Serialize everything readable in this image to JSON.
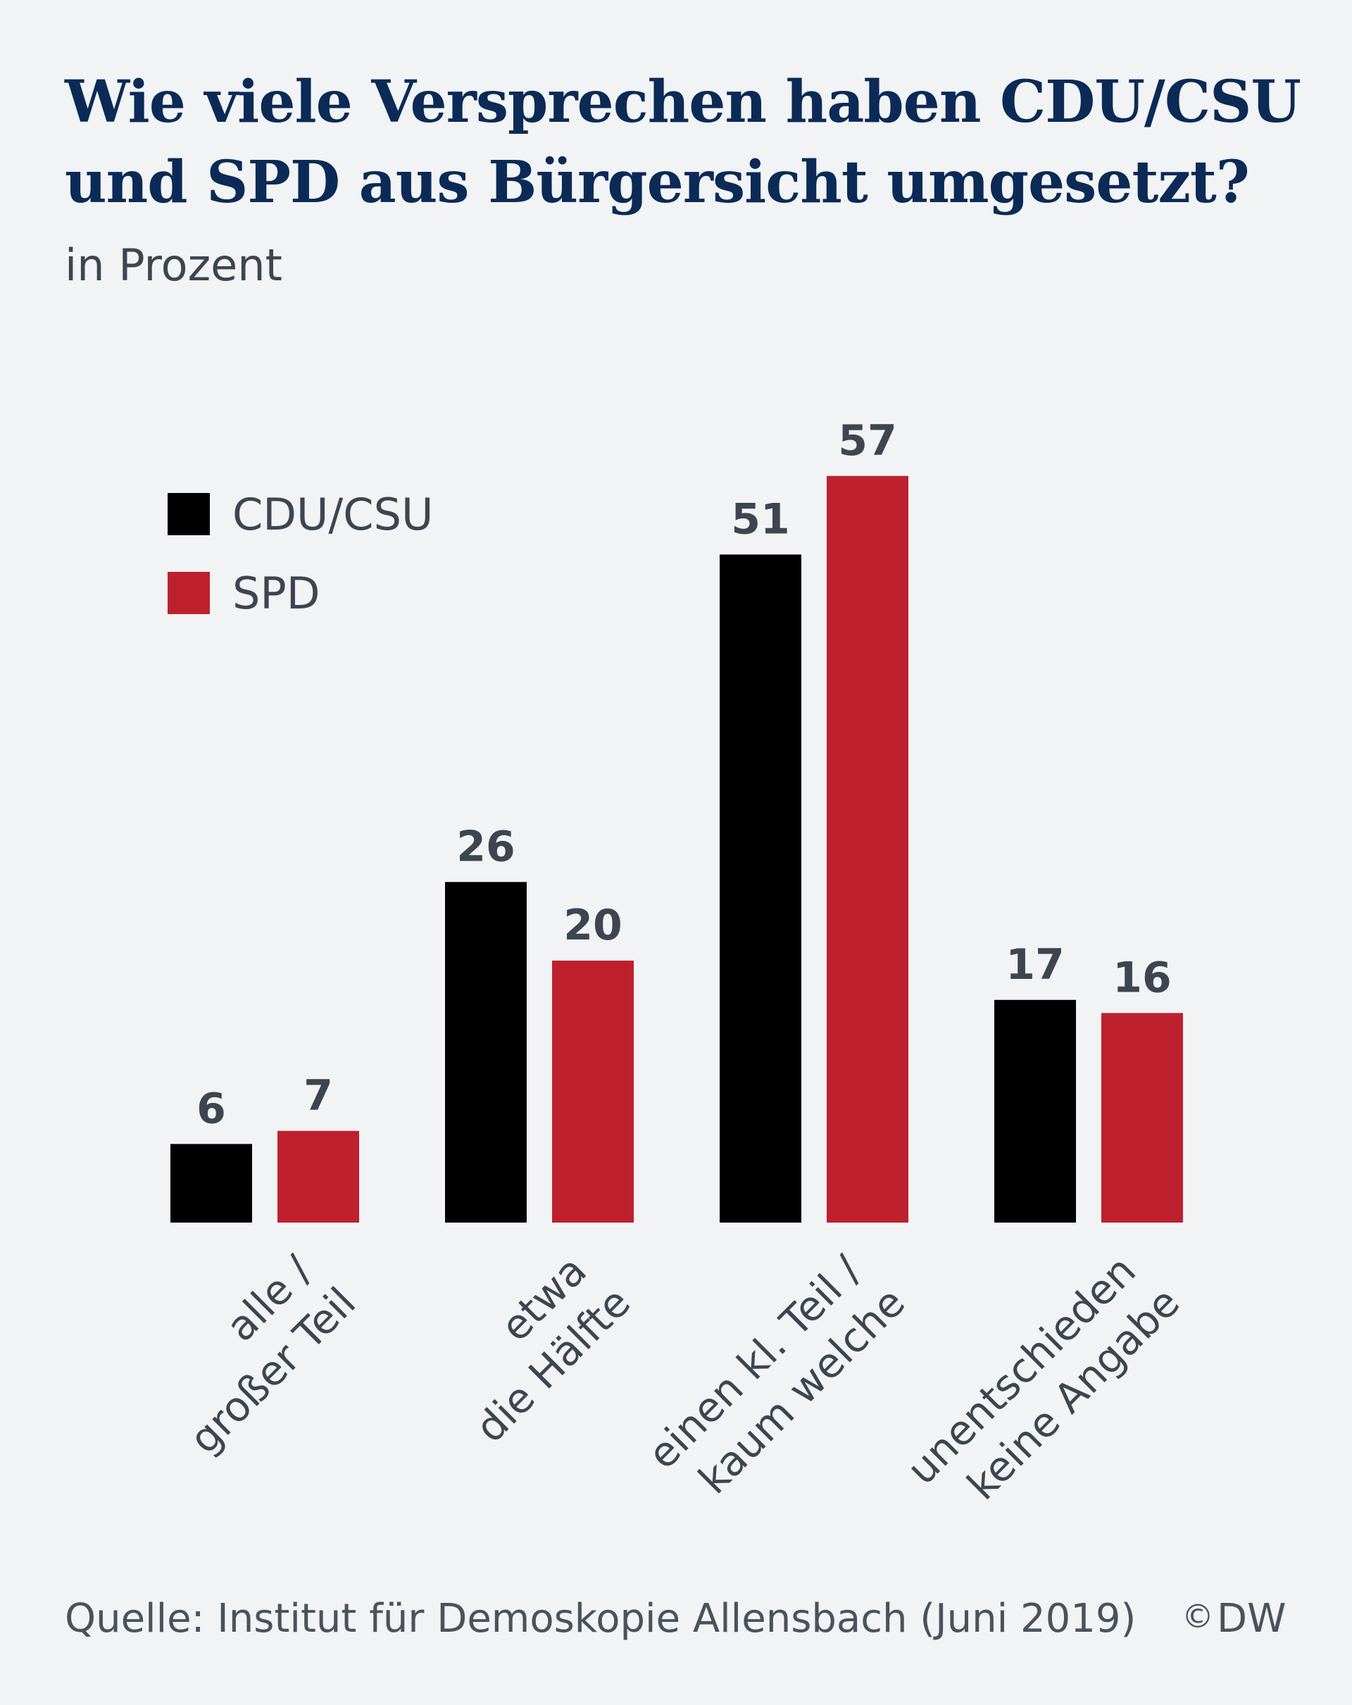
{
  "header": {
    "title_lines": [
      "Wie viele Versprechen haben CDU/CSU",
      "und SPD aus Bürgersicht umgesetzt?"
    ],
    "subtitle": "in Prozent"
  },
  "footer": {
    "source": "Quelle: Institut für Demoskopie Allensbach (Juni 2019)",
    "credit_symbol": "©",
    "credit": "DW"
  },
  "colors": {
    "title": "#0b2a56",
    "text": "#3d4550",
    "cdu": "#000000",
    "spd": "#be202e",
    "background": "#f2f3f5"
  },
  "chart_data": {
    "type": "bar",
    "title": "Wie viele Versprechen haben CDU/CSU und SPD aus Bürgersicht umgesetzt?",
    "ylabel": "in Prozent",
    "xlabel": "",
    "ylim": [
      0,
      60
    ],
    "grid": false,
    "legend_position": "top-left",
    "categories": [
      [
        "alle /",
        "großer Teil"
      ],
      [
        "etwa",
        "die Hälfte"
      ],
      [
        "einen kl. Teil /",
        "kaum welche"
      ],
      [
        "unentschieden",
        "keine Angabe"
      ]
    ],
    "series": [
      {
        "name": "CDU/CSU",
        "color": "#000000",
        "values": [
          6,
          26,
          51,
          17
        ]
      },
      {
        "name": "SPD",
        "color": "#be202e",
        "values": [
          7,
          20,
          57,
          16
        ]
      }
    ]
  }
}
